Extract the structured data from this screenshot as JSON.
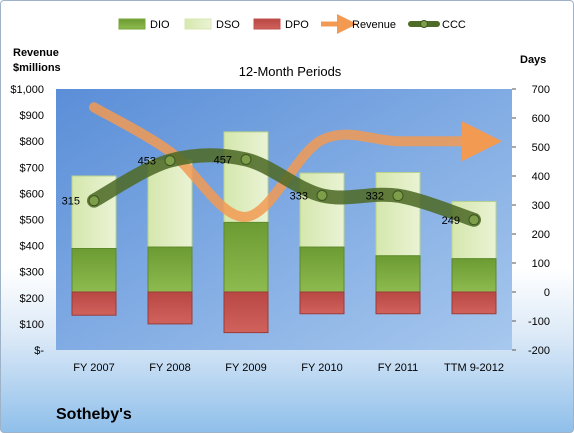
{
  "company": "Sotheby's",
  "chart_data": {
    "type": "bar",
    "title": "12-Month Periods",
    "categories": [
      "FY 2007",
      "FY 2008",
      "FY 2009",
      "FY 2010",
      "FY 2011",
      "TTM 9-2012"
    ],
    "left_axis": {
      "label_line1": "Revenue",
      "label_line2": "$millions",
      "range": [
        0,
        1000
      ],
      "ticks": [
        "$-",
        "$100",
        "$200",
        "$300",
        "$400",
        "$500",
        "$600",
        "$700",
        "$800",
        "$900",
        "$1,000"
      ]
    },
    "right_axis": {
      "label": "Days",
      "range": [
        -200,
        700
      ],
      "ticks": [
        "-200",
        "-100",
        "0",
        "100",
        "200",
        "300",
        "400",
        "500",
        "600",
        "700"
      ]
    },
    "legend": [
      "DIO",
      "DSO",
      "DPO",
      "Revenue",
      "CCC"
    ],
    "legend_position": "top",
    "series": [
      {
        "name": "DIO",
        "type": "stacked-bar",
        "axis": "right",
        "values": [
          150,
          155,
          240,
          155,
          125,
          115
        ],
        "color": "#76a83a"
      },
      {
        "name": "DSO",
        "type": "stacked-bar",
        "axis": "right",
        "values": [
          250,
          300,
          312,
          255,
          287,
          197
        ],
        "color": "#d7e8b0"
      },
      {
        "name": "DPO",
        "type": "bar",
        "axis": "right",
        "values": [
          -80,
          -110,
          -140,
          -75,
          -75,
          -75
        ],
        "color": "#c0504d"
      },
      {
        "name": "Revenue",
        "type": "smooth-line-arrow",
        "axis": "left",
        "values": [
          930,
          760,
          510,
          805,
          800,
          800
        ],
        "color": "#f29a52"
      },
      {
        "name": "CCC",
        "type": "smooth-line",
        "axis": "right",
        "values": [
          315,
          453,
          457,
          333,
          332,
          249
        ],
        "labels": [
          "315",
          "453",
          "457",
          "333",
          "332",
          "249"
        ],
        "color": "#4f6b28"
      }
    ]
  }
}
